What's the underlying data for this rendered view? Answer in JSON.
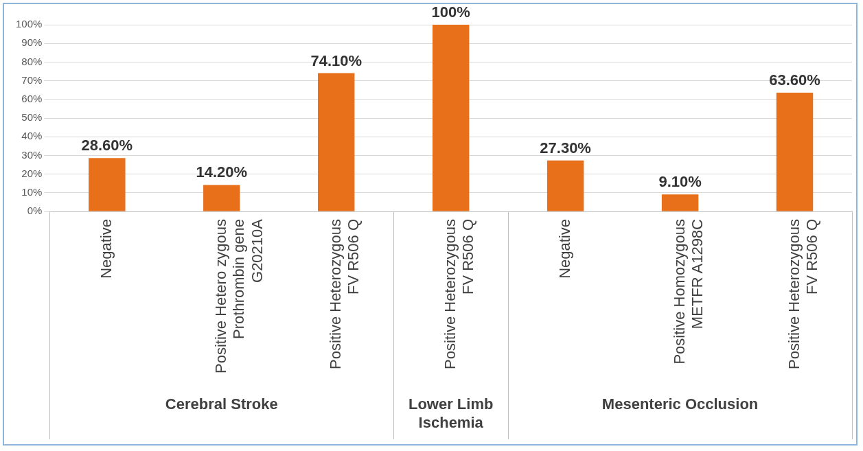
{
  "chart_data": {
    "type": "bar",
    "categories": [
      "Negative",
      "Positive Hetero zygous Prothrombin gene G20210A",
      "Positive Heterozygous FV R506 Q",
      "Positive Heterozygous FV R506 Q",
      "Negative",
      "Positive Homozygous METFR A1298C",
      "Positive Heterozygous FV R506 Q"
    ],
    "values": [
      28.6,
      14.2,
      74.1,
      100,
      27.3,
      9.1,
      63.6
    ],
    "value_labels": [
      "28.60%",
      "14.20%",
      "74.10%",
      "100%",
      "27.30%",
      "9.10%",
      "63.60%"
    ],
    "color": "#e8701a",
    "ylim": [
      0,
      100
    ],
    "yticks": [
      {
        "value": 0,
        "label": "0%"
      },
      {
        "value": 10,
        "label": "10%"
      },
      {
        "value": 20,
        "label": "20%"
      },
      {
        "value": 30,
        "label": "30%"
      },
      {
        "value": 40,
        "label": "40%"
      },
      {
        "value": 50,
        "label": "50%"
      },
      {
        "value": 60,
        "label": "60%"
      },
      {
        "value": 70,
        "label": "70%"
      },
      {
        "value": 80,
        "label": "80%"
      },
      {
        "value": 90,
        "label": "90%"
      },
      {
        "value": 100,
        "label": "100%"
      }
    ],
    "grid": "y",
    "legend": false,
    "annotations": [
      "Cerebral Stroke",
      "Lower Limb Ischemia",
      "Mesenteric Occlusion"
    ]
  }
}
